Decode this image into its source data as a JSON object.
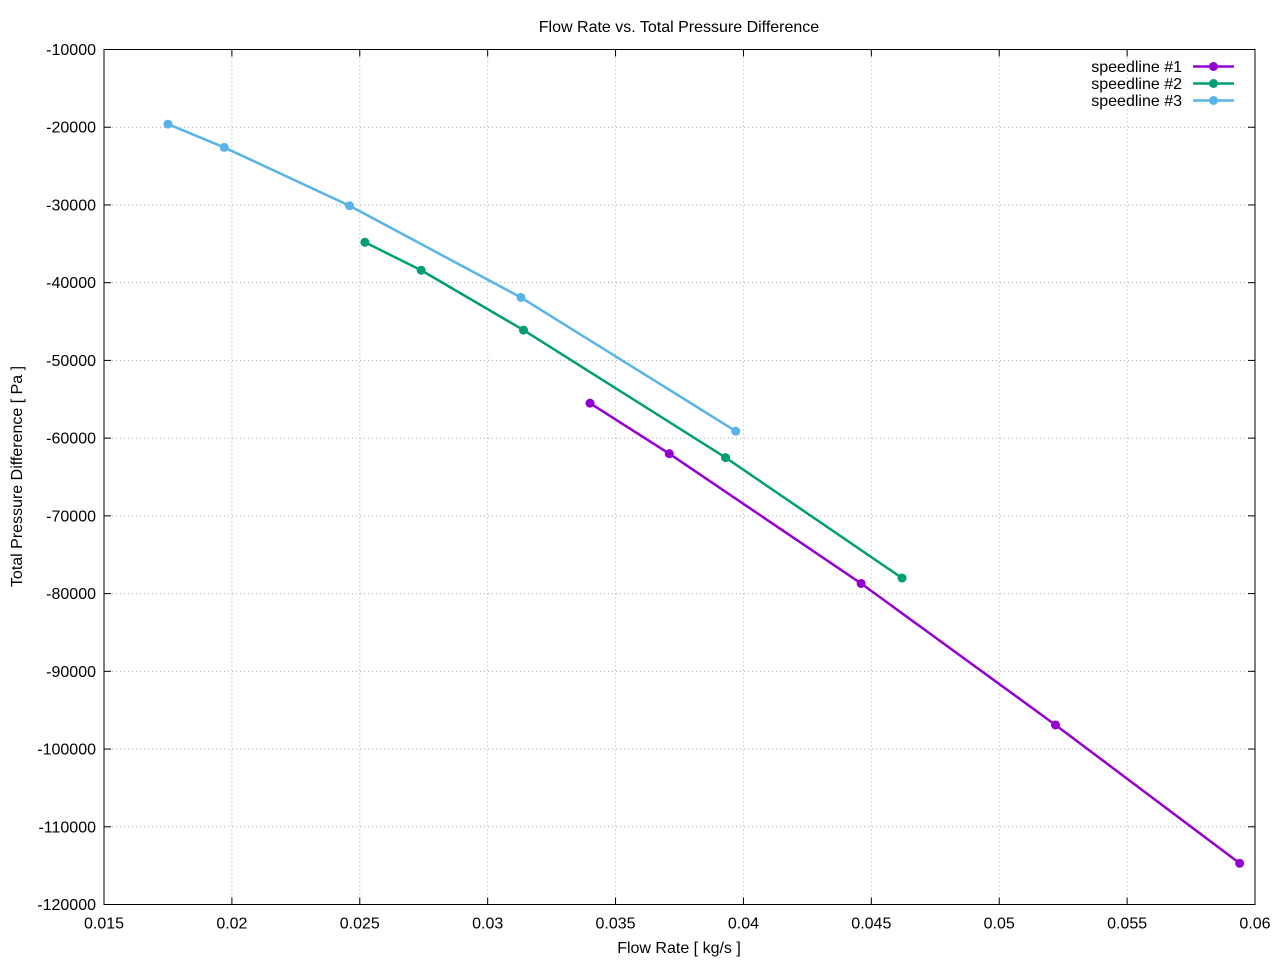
{
  "chart_data": {
    "type": "line",
    "title": "Flow Rate vs. Total Pressure Difference",
    "xlabel": "Flow Rate [ kg/s ]",
    "ylabel": "Total Pressure Difference [ Pa ]",
    "xlim": [
      0.015,
      0.06
    ],
    "ylim": [
      -120000,
      -10000
    ],
    "x_ticks": [
      0.015,
      0.02,
      0.025,
      0.03,
      0.035,
      0.04,
      0.045,
      0.05,
      0.055,
      0.06
    ],
    "x_tick_labels": [
      "0.015",
      "0.02",
      "0.025",
      "0.03",
      "0.035",
      "0.04",
      "0.045",
      "0.05",
      "0.055",
      "0.06"
    ],
    "y_ticks": [
      -120000,
      -110000,
      -100000,
      -90000,
      -80000,
      -70000,
      -60000,
      -50000,
      -40000,
      -30000,
      -20000,
      -10000
    ],
    "y_tick_labels": [
      "-120000",
      "-110000",
      "-100000",
      "-90000",
      "-80000",
      "-70000",
      "-60000",
      "-50000",
      "-40000",
      "-30000",
      "-20000",
      "-10000"
    ],
    "grid": "dotted",
    "legend_position": "top-right-inside",
    "colors": {
      "border": "#000000",
      "grid": "#aaaaaa",
      "text": "#000000"
    },
    "series": [
      {
        "name": "speedline #1",
        "color": "#9400d3",
        "marker": "filled-circle",
        "points": [
          [
            0.034,
            -55500
          ],
          [
            0.0371,
            -62000
          ],
          [
            0.0446,
            -78700
          ],
          [
            0.0522,
            -96900
          ],
          [
            0.0594,
            -114700
          ]
        ]
      },
      {
        "name": "speedline #2",
        "color": "#009e73",
        "marker": "filled-circle",
        "points": [
          [
            0.0252,
            -34800
          ],
          [
            0.0274,
            -38400
          ],
          [
            0.0314,
            -46100
          ],
          [
            0.0393,
            -62500
          ],
          [
            0.0462,
            -78000
          ]
        ]
      },
      {
        "name": "speedline #3",
        "color": "#56b4e9",
        "marker": "filled-circle",
        "points": [
          [
            0.0175,
            -19600
          ],
          [
            0.0197,
            -22600
          ],
          [
            0.0246,
            -30100
          ],
          [
            0.0313,
            -41900
          ],
          [
            0.0397,
            -59100
          ]
        ]
      }
    ]
  }
}
